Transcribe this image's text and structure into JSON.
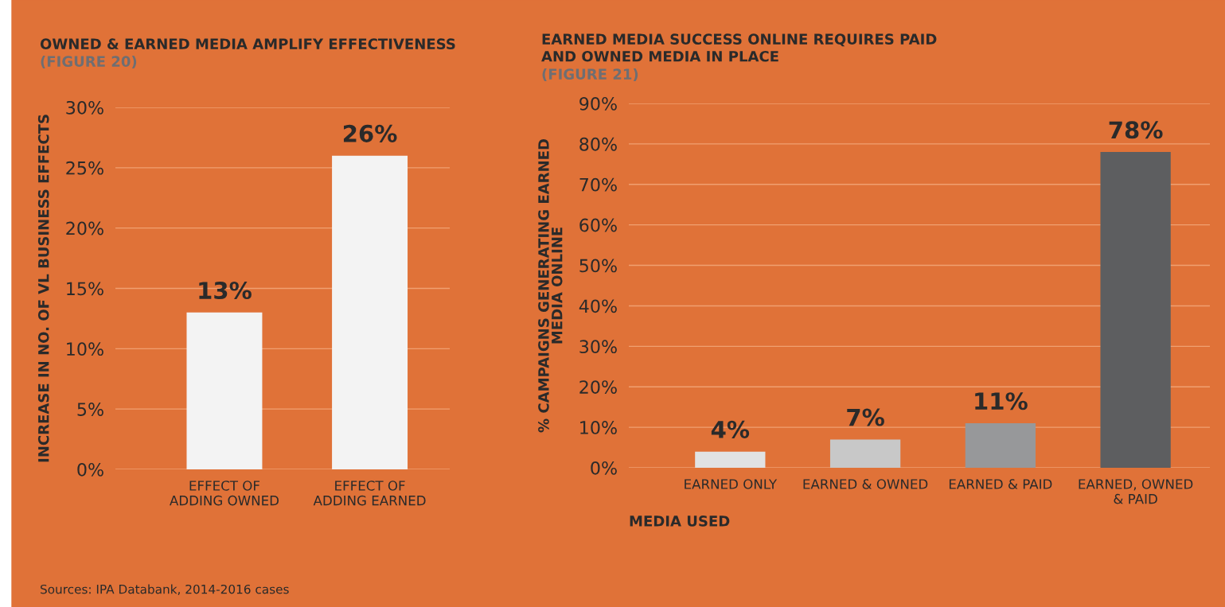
{
  "chart_data": [
    {
      "type": "bar",
      "title": "OWNED & EARNED MEDIA AMPLIFY EFFECTIVENESS",
      "subtitle": "(FIGURE 20)",
      "ylabel": "INCREASE IN NO. OF VL BUSINESS EFFECTS",
      "categories": [
        "EFFECT OF\nADDING OWNED",
        "EFFECT OF\nADDING EARNED"
      ],
      "values": [
        13,
        26
      ],
      "colors": [
        "#f3f3f3",
        "#f3f3f3"
      ],
      "value_labels": [
        "13%",
        "26%"
      ],
      "ylim": [
        0,
        30
      ],
      "yticks": [
        {
          "value": 0,
          "label": "0%"
        },
        {
          "value": 5,
          "label": "5%"
        },
        {
          "value": 10,
          "label": "10%"
        },
        {
          "value": 15,
          "label": "15%"
        },
        {
          "value": 20,
          "label": "20%"
        },
        {
          "value": 25,
          "label": "25%"
        },
        {
          "value": 30,
          "label": "30%"
        }
      ],
      "grid": "y",
      "annotations": [
        "Sources: IPA Databank, 2014-2016 cases"
      ]
    },
    {
      "type": "bar",
      "title": "EARNED MEDIA SUCCESS ONLINE REQUIRES PAID\nAND OWNED MEDIA IN PLACE",
      "subtitle": "(FIGURE 21)",
      "xlabel": "MEDIA USED",
      "ylabel": "% CAMPAIGNS GENERATING EARNED\nMEDIA ONLINE",
      "categories": [
        "EARNED ONLY",
        "EARNED & OWNED",
        "EARNED & PAID",
        "EARNED, OWNED\n& PAID"
      ],
      "values": [
        4,
        7,
        11,
        78
      ],
      "colors": [
        "#e1e2e3",
        "#c8c8c8",
        "#97989a",
        "#5d5e60"
      ],
      "value_labels": [
        "4%",
        "7%",
        "11%",
        "78%"
      ],
      "ylim": [
        0,
        90
      ],
      "yticks": [
        {
          "value": 0,
          "label": "0%"
        },
        {
          "value": 10,
          "label": "10%"
        },
        {
          "value": 20,
          "label": "20%"
        },
        {
          "value": 30,
          "label": "30%"
        },
        {
          "value": 40,
          "label": "40%"
        },
        {
          "value": 50,
          "label": "50%"
        },
        {
          "value": 60,
          "label": "60%"
        },
        {
          "value": 70,
          "label": "70%"
        },
        {
          "value": 80,
          "label": "80%"
        },
        {
          "value": 90,
          "label": "90%"
        }
      ],
      "grid": "y"
    }
  ]
}
